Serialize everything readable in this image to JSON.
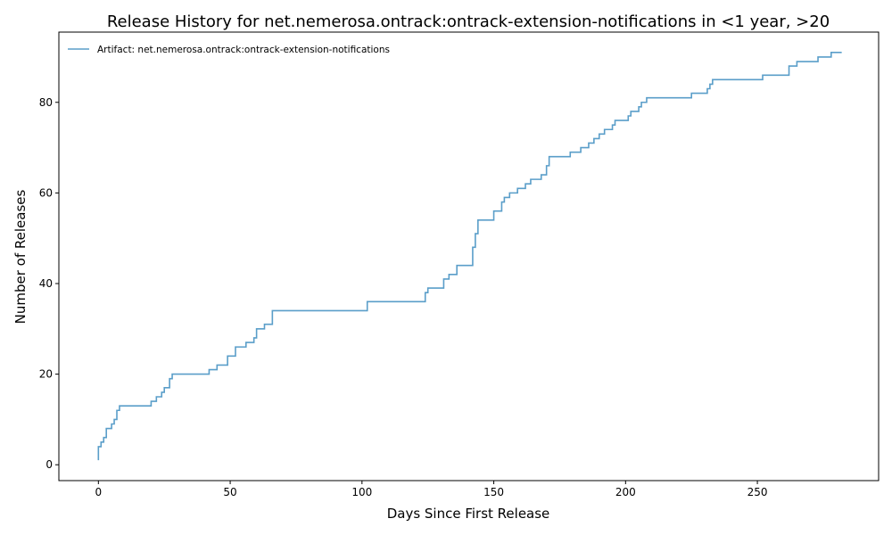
{
  "chart_data": {
    "type": "line",
    "step": true,
    "title": "Release History for net.nemerosa.ontrack:ontrack-extension-notifications in <1 year, >20",
    "xlabel": "Days Since First Release",
    "ylabel": "Number of Releases",
    "xlim": [
      -15,
      296
    ],
    "ylim": [
      -3.5,
      95.5
    ],
    "xticks": [
      0,
      50,
      100,
      150,
      200,
      250
    ],
    "yticks": [
      0,
      20,
      40,
      60,
      80
    ],
    "grid": false,
    "legend_position": "top-left",
    "series": [
      {
        "name": "Artifact: net.nemerosa.ontrack:ontrack-extension-notifications",
        "color": "#5a9ec9",
        "x": [
          0,
          0,
          1,
          2,
          3,
          5,
          6,
          7,
          8,
          10,
          20,
          22,
          24,
          25,
          27,
          28,
          42,
          45,
          49,
          52,
          56,
          59,
          60,
          63,
          66,
          102,
          124,
          125,
          126,
          131,
          133,
          136,
          142,
          143,
          144,
          145,
          150,
          153,
          154,
          156,
          159,
          162,
          164,
          168,
          170,
          171,
          179,
          183,
          186,
          188,
          190,
          192,
          195,
          196,
          201,
          202,
          205,
          206,
          208,
          225,
          231,
          232,
          233,
          252,
          262,
          265,
          273,
          278,
          282
        ],
        "y": [
          1,
          4,
          5,
          6,
          8,
          9,
          10,
          12,
          13,
          13,
          14,
          15,
          16,
          17,
          19,
          20,
          21,
          22,
          24,
          26,
          27,
          28,
          30,
          31,
          34,
          36,
          38,
          39,
          39,
          41,
          42,
          44,
          48,
          51,
          54,
          54,
          56,
          58,
          59,
          60,
          61,
          62,
          63,
          64,
          66,
          68,
          69,
          70,
          71,
          72,
          73,
          74,
          75,
          76,
          77,
          78,
          79,
          80,
          81,
          82,
          83,
          84,
          85,
          86,
          88,
          89,
          90,
          91,
          91
        ]
      }
    ]
  }
}
